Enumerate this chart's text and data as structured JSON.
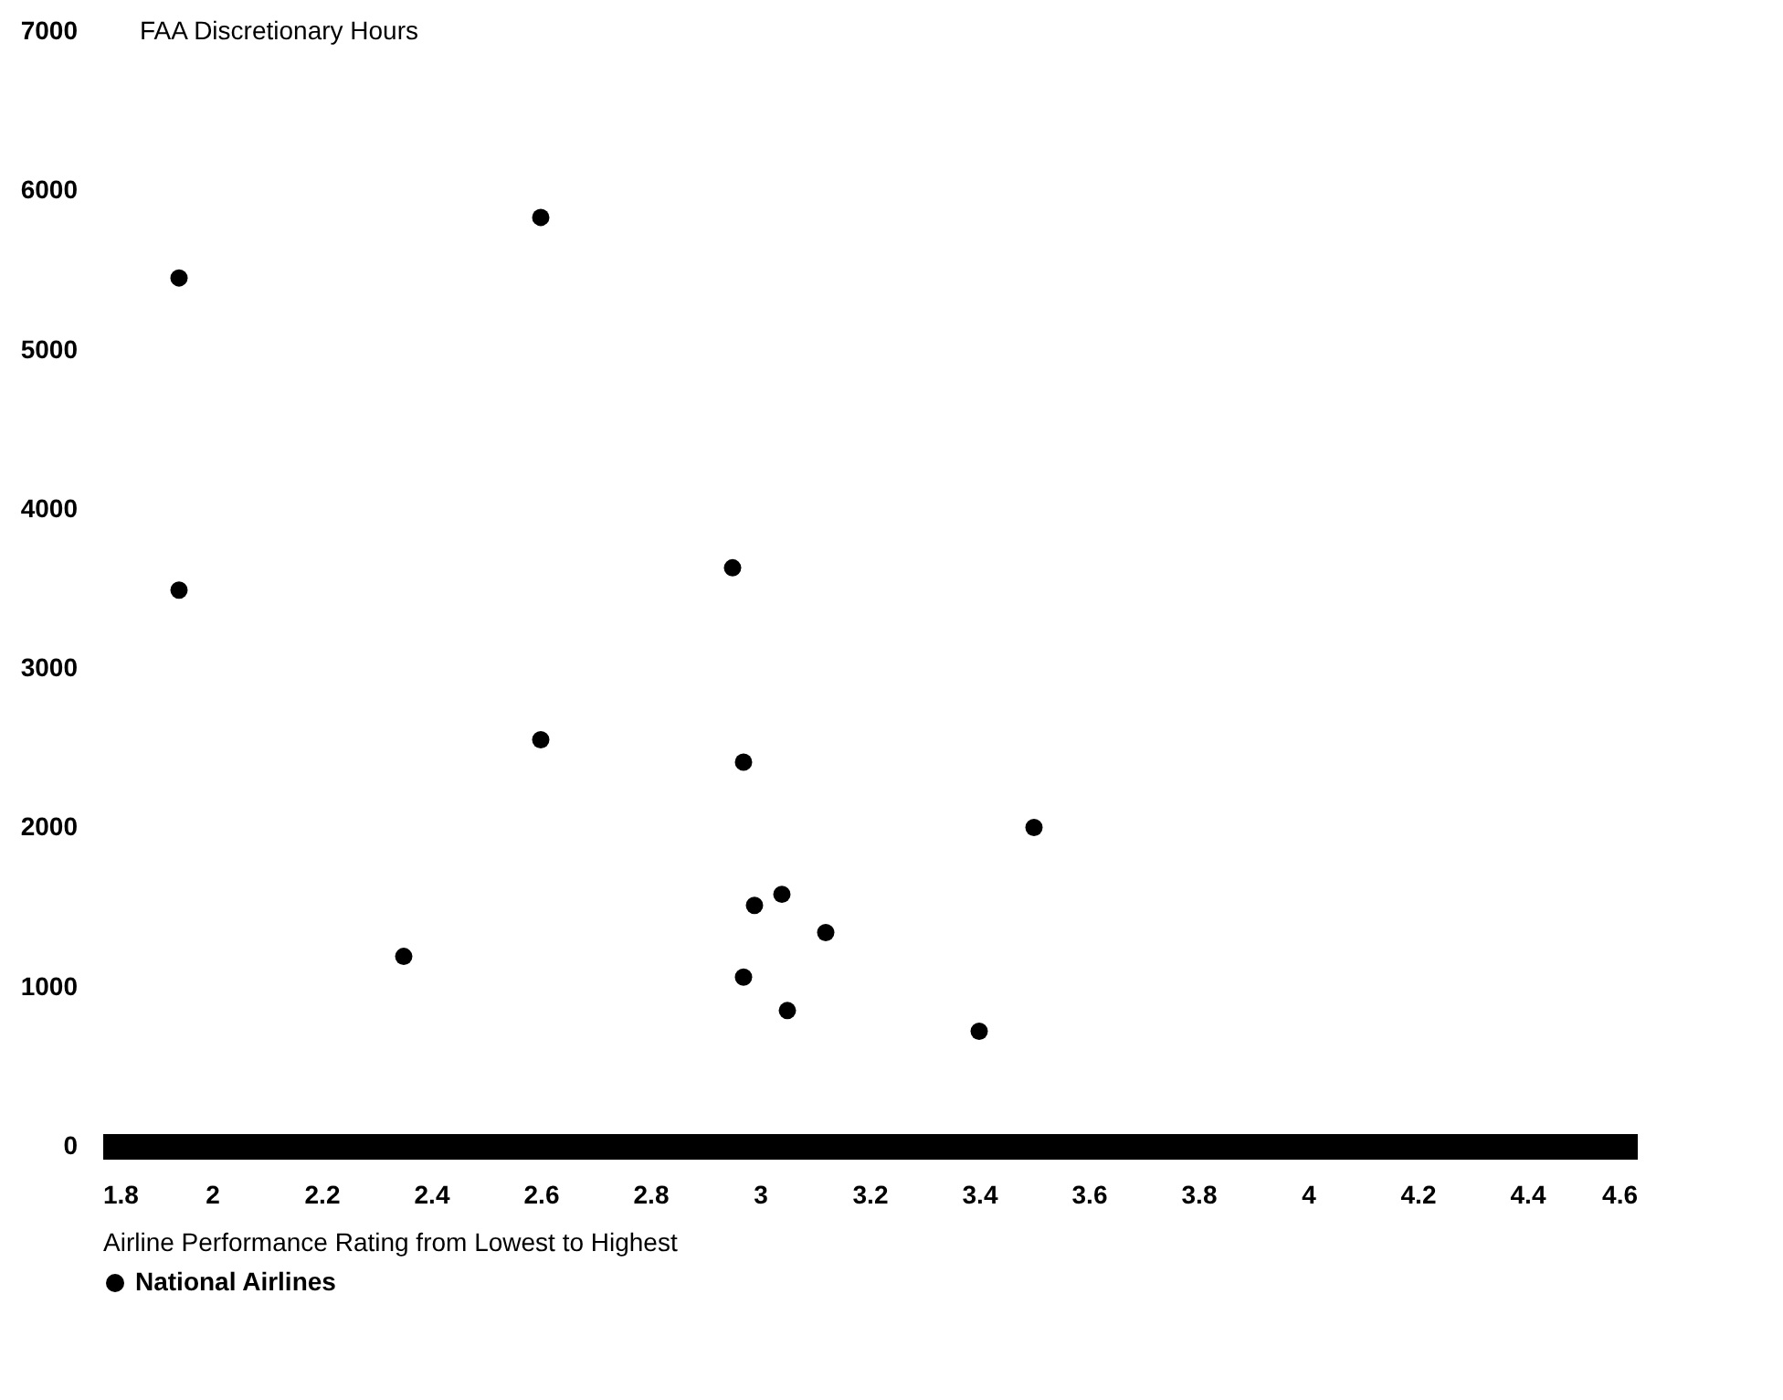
{
  "chart_data": {
    "type": "scatter",
    "ylabel": "FAA Discretionary Hours",
    "xlabel": "Airline Performance Rating from Lowest to Highest",
    "xlim": [
      1.8,
      4.6
    ],
    "xticks": [
      1.8,
      2,
      2.2,
      2.4,
      2.6,
      2.8,
      3,
      3.2,
      3.4,
      3.6,
      3.8,
      4,
      4.2,
      4.4,
      4.6
    ],
    "ylim": [
      0,
      7000
    ],
    "yticks": [
      0,
      1000,
      2000,
      3000,
      4000,
      5000,
      6000,
      7000
    ],
    "grid": false,
    "legend": "bottom left",
    "marker": "circle",
    "series": [
      {
        "name": "National Airlines",
        "color": "#000000",
        "x": [
          1.94,
          1.94,
          2.6,
          2.6,
          2.35,
          2.95,
          2.97,
          2.99,
          3.04,
          3.12,
          2.97,
          3.05,
          3.5,
          3.4
        ],
        "values": [
          5450,
          3490,
          5830,
          2550,
          1190,
          3630,
          2410,
          1510,
          1580,
          1340,
          1060,
          850,
          2000,
          720
        ]
      }
    ]
  }
}
